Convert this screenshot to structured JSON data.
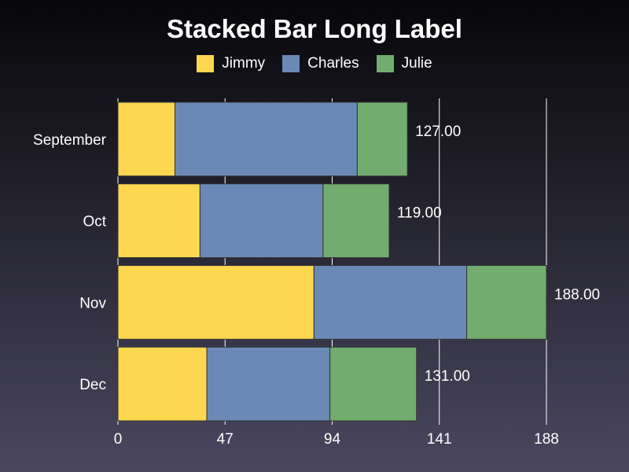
{
  "chart_data": {
    "type": "bar",
    "orientation": "horizontal",
    "stacked": true,
    "title": "Stacked Bar Long Label",
    "categories": [
      "September",
      "Oct",
      "Nov",
      "Dec"
    ],
    "series": [
      {
        "name": "Jimmy",
        "color": "#fdd74f",
        "values": [
          25,
          36,
          86,
          39
        ]
      },
      {
        "name": "Charles",
        "color": "#6a89b7",
        "values": [
          80,
          54,
          67,
          54
        ]
      },
      {
        "name": "Julie",
        "color": "#72ad6f",
        "values": [
          22,
          29,
          35,
          38
        ]
      }
    ],
    "totals": [
      "127.00",
      "119.00",
      "188.00",
      "131.00"
    ],
    "x_ticks": [
      "0",
      "47",
      "94",
      "141",
      "188"
    ],
    "xlim": [
      0,
      188
    ],
    "grid": "vertical",
    "legend_position": "top"
  }
}
